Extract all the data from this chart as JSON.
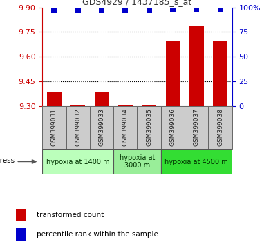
{
  "title": "GDS4929 / 1437185_s_at",
  "samples": [
    "GSM399031",
    "GSM399032",
    "GSM399033",
    "GSM399034",
    "GSM399035",
    "GSM399036",
    "GSM399037",
    "GSM399038"
  ],
  "bar_values": [
    9.385,
    9.31,
    9.385,
    9.305,
    9.305,
    9.695,
    9.79,
    9.695
  ],
  "percentile_values": [
    97,
    97,
    97,
    97,
    97,
    98,
    98,
    98
  ],
  "bar_bottom": 9.3,
  "ylim": [
    9.3,
    9.9
  ],
  "yticks": [
    9.3,
    9.45,
    9.6,
    9.75,
    9.9
  ],
  "y2ticks": [
    0,
    25,
    50,
    75,
    100
  ],
  "y2lim": [
    0,
    100
  ],
  "bar_color": "#cc0000",
  "dot_color": "#0000cc",
  "groups": [
    {
      "label": "hypoxia at 1400 m",
      "start": 0,
      "end": 2,
      "color": "#bbffbb"
    },
    {
      "label": "hypoxia at\n3000 m",
      "start": 3,
      "end": 4,
      "color": "#99ee99"
    },
    {
      "label": "hypoxia at 4500 m",
      "start": 5,
      "end": 7,
      "color": "#33dd33"
    }
  ],
  "stress_label": "stress",
  "legend_bar_label": "transformed count",
  "legend_dot_label": "percentile rank within the sample",
  "ylabel_color": "#cc0000",
  "y2label_color": "#0000cc",
  "title_color": "#333333",
  "bg_color": "#ffffff",
  "bar_width": 0.6,
  "dot_size": 30,
  "grid_dotted_color": "#000000"
}
